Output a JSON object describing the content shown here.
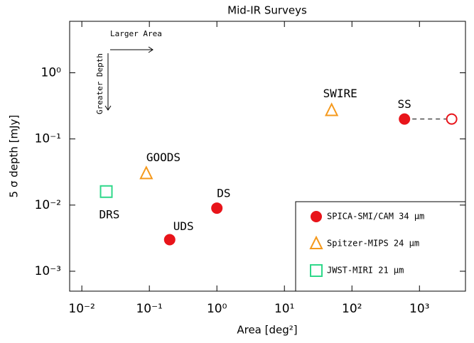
{
  "chart_data": {
    "type": "scatter",
    "title": "Mid-IR Surveys",
    "x_label": "Area [deg²]",
    "y_label": "5 σ depth [mJy]",
    "log_x": true,
    "log_y": true,
    "xlim": [
      0.0066,
      4800
    ],
    "ylim": [
      0.0005,
      6
    ],
    "xticks": [
      {
        "value": 0.01,
        "label": "10⁻²"
      },
      {
        "value": 0.1,
        "label": "10⁻¹"
      },
      {
        "value": 1,
        "label": "10⁰"
      },
      {
        "value": 10,
        "label": "10¹"
      },
      {
        "value": 100,
        "label": "10²"
      },
      {
        "value": 1000,
        "label": "10³"
      }
    ],
    "yticks": [
      {
        "value": 0.001,
        "label": "10⁻³"
      },
      {
        "value": 0.01,
        "label": "10⁻²"
      },
      {
        "value": 0.1,
        "label": "10⁻¹"
      },
      {
        "value": 1,
        "label": "10⁰"
      }
    ],
    "legend": "lower right",
    "series": [
      {
        "name": "SPICA-SMI/CAM 34 μm",
        "color": "#e8141a",
        "marker": "filled-circle",
        "x": [
          0.2,
          1,
          600
        ],
        "values": [
          0.003,
          0.009,
          0.2
        ],
        "point_labels": [
          "UDS",
          "DS",
          "SS"
        ]
      },
      {
        "name": "Spitzer-MIPS 24 μm",
        "color": "#f5991c",
        "marker": "open-triangle",
        "x": [
          0.09,
          50
        ],
        "values": [
          0.03,
          0.27
        ],
        "point_labels": [
          "GOODS",
          "SWIRE"
        ]
      },
      {
        "name": "JWST-MIRI 21 μm",
        "color": "#2fd88a",
        "marker": "open-square",
        "x": [
          0.023
        ],
        "values": [
          0.016
        ],
        "point_labels": [
          "DRS"
        ]
      }
    ],
    "extension": {
      "color": "#e8141a",
      "marker": "open-circle",
      "x": [
        600,
        3000
      ],
      "values": [
        0.2,
        0.2
      ]
    },
    "annotations": [
      "Larger Area",
      "Greater Depth"
    ]
  }
}
